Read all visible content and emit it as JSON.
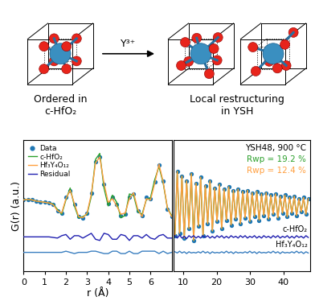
{
  "diagram": {
    "left_label": "Ordered in\nc-HfO₂",
    "arrow_label": "Y³⁺",
    "right_label": "Local restructuring\nin YSH"
  },
  "chart_data": [
    {
      "type": "line",
      "x_label": "r (Å)",
      "y_label": "G(r) (a.u.)",
      "xlim": [
        0,
        7
      ],
      "xticks": [
        0,
        1,
        2,
        3,
        4,
        5,
        6
      ],
      "ylim": [
        0,
        11
      ],
      "tick_labels": "x",
      "legend": "upper left",
      "x": [
        0.0,
        0.2,
        0.4,
        0.6,
        0.8,
        1.0,
        1.2,
        1.4,
        1.6,
        1.8,
        2.0,
        2.2,
        2.4,
        2.6,
        2.8,
        3.0,
        3.2,
        3.4,
        3.6,
        3.8,
        4.0,
        4.2,
        4.4,
        4.6,
        4.8,
        5.0,
        5.2,
        5.4,
        5.6,
        5.8,
        6.0,
        6.2,
        6.4,
        6.6,
        6.8,
        7.0
      ],
      "series": [
        {
          "name": "Data",
          "color": "#1f77b4",
          "marker": "circle",
          "line_style": "none",
          "values": [
            6.0,
            6.05,
            6.0,
            5.9,
            5.85,
            5.8,
            5.75,
            5.6,
            5.1,
            4.9,
            6.2,
            6.8,
            5.6,
            4.6,
            4.5,
            4.9,
            6.6,
            9.2,
            9.6,
            7.3,
            5.7,
            6.2,
            5.6,
            4.7,
            4.8,
            6.2,
            6.5,
            5.1,
            4.7,
            6.2,
            6.1,
            7.5,
            8.9,
            7.6,
            5.2,
            4.6
          ]
        },
        {
          "name": "c-HfO₂",
          "color": "#2ca02c",
          "marker": "none",
          "line_style": "solid",
          "values": [
            6.0,
            6.05,
            6.0,
            5.9,
            5.85,
            5.8,
            5.75,
            5.65,
            5.2,
            4.8,
            6.0,
            7.0,
            5.5,
            4.5,
            4.6,
            4.8,
            6.3,
            9.4,
            9.9,
            7.0,
            5.5,
            6.4,
            5.8,
            4.5,
            4.7,
            6.5,
            6.4,
            5.0,
            4.8,
            6.0,
            6.2,
            7.7,
            8.8,
            7.4,
            5.3,
            4.7
          ]
        },
        {
          "name": "Hf₃Y₄O₁₂",
          "color": "#ff9f3f",
          "marker": "none",
          "line_style": "solid",
          "values": [
            6.0,
            6.05,
            6.0,
            5.9,
            5.85,
            5.8,
            5.75,
            5.6,
            5.1,
            4.9,
            6.1,
            6.8,
            5.7,
            4.6,
            4.5,
            4.9,
            6.5,
            9.1,
            9.6,
            7.4,
            5.8,
            6.1,
            5.5,
            4.8,
            4.9,
            6.1,
            6.6,
            5.2,
            4.6,
            6.1,
            6.0,
            7.4,
            9.0,
            7.5,
            5.3,
            4.6
          ]
        },
        {
          "name": "Residual",
          "color": "#2020b0",
          "marker": "none",
          "line_style": "solid",
          "values": [
            2.9,
            2.9,
            2.9,
            2.9,
            2.9,
            2.9,
            2.9,
            2.85,
            2.8,
            3.0,
            3.1,
            2.7,
            3.0,
            3.0,
            2.8,
            3.0,
            3.2,
            2.7,
            2.6,
            3.2,
            3.1,
            2.7,
            2.7,
            3.1,
            3.0,
            2.6,
            3.0,
            3.0,
            2.8,
            3.1,
            2.8,
            2.7,
            3.0,
            3.1,
            2.8,
            2.8
          ]
        },
        {
          "color": "#3a7fc0",
          "marker": "none",
          "line_style": "solid",
          "values": [
            1.6,
            1.6,
            1.6,
            1.6,
            1.6,
            1.6,
            1.6,
            1.6,
            1.6,
            1.6,
            1.7,
            1.6,
            1.5,
            1.6,
            1.6,
            1.6,
            1.7,
            1.7,
            1.6,
            1.5,
            1.5,
            1.7,
            1.7,
            1.5,
            1.5,
            1.7,
            1.5,
            1.5,
            1.7,
            1.7,
            1.7,
            1.7,
            1.5,
            1.7,
            1.5,
            1.6
          ]
        }
      ]
    },
    {
      "type": "line",
      "xlim": [
        7,
        48
      ],
      "xticks": [
        10,
        20,
        30,
        40
      ],
      "ylim": [
        0,
        11
      ],
      "tick_labels": "x",
      "annotations": [
        {
          "text": "YSH48, 900 °C",
          "color": "#000000"
        },
        {
          "text": "Rwp = 19.2 %",
          "color": "#2ca02c"
        },
        {
          "text": "Rwp = 12.4 %",
          "color": "#ff9f3f"
        }
      ],
      "x": [
        7.5,
        8.2,
        8.9,
        9.6,
        10.3,
        11.0,
        11.7,
        12.4,
        13.1,
        13.8,
        14.5,
        15.2,
        15.9,
        16.6,
        17.3,
        18.0,
        18.7,
        19.4,
        20.1,
        20.8,
        21.5,
        22.2,
        22.9,
        23.6,
        24.3,
        25.0,
        25.7,
        26.4,
        27.1,
        27.8,
        28.5,
        29.2,
        29.9,
        30.6,
        31.3,
        32.0,
        32.7,
        33.4,
        34.1,
        34.8,
        35.5,
        36.2,
        36.9,
        37.6,
        38.3,
        39.0,
        39.7,
        40.4,
        41.1,
        41.8,
        42.5,
        43.2,
        43.9,
        44.6,
        45.3,
        46.0,
        46.7,
        47.4
      ],
      "series": [
        {
          "color": "#1f77b4",
          "marker": "circle",
          "line_style": "none",
          "values": [
            3.0,
            8.4,
            3.2,
            8.0,
            2.8,
            7.6,
            3.6,
            8.2,
            2.6,
            7.4,
            3.8,
            7.9,
            3.0,
            7.2,
            4.0,
            7.6,
            3.4,
            7.0,
            4.2,
            7.3,
            3.6,
            6.9,
            4.3,
            7.1,
            3.9,
            6.8,
            4.4,
            6.9,
            4.0,
            6.7,
            4.5,
            6.8,
            4.2,
            6.6,
            4.6,
            6.7,
            4.3,
            6.5,
            4.7,
            6.6,
            4.4,
            6.4,
            4.8,
            6.5,
            4.5,
            6.3,
            4.9,
            6.4,
            4.6,
            6.2,
            4.9,
            6.3,
            4.7,
            6.1,
            5.0,
            6.2,
            4.8,
            6.1
          ]
        },
        {
          "color": "#2ca02c",
          "marker": "none",
          "line_style": "solid",
          "values": [
            3.0,
            8.4,
            3.2,
            8.0,
            2.8,
            7.6,
            3.6,
            8.2,
            2.6,
            7.4,
            3.8,
            7.9,
            3.0,
            7.2,
            4.0,
            7.6,
            3.4,
            7.0,
            4.2,
            7.3,
            3.6,
            6.9,
            4.3,
            7.1,
            3.9,
            6.8,
            4.4,
            6.9,
            4.0,
            6.7,
            4.5,
            6.8,
            4.2,
            6.6,
            4.6,
            6.7,
            4.3,
            6.5,
            4.7,
            6.6,
            4.4,
            6.4,
            4.8,
            6.5,
            4.5,
            6.3,
            4.9,
            6.4,
            4.6,
            6.2,
            4.9,
            6.3,
            4.7,
            6.1,
            5.0,
            6.2,
            4.8,
            6.1
          ]
        },
        {
          "color": "#ff9f3f",
          "marker": "none",
          "line_style": "solid",
          "values": [
            3.0,
            8.4,
            3.2,
            8.0,
            2.8,
            7.6,
            3.6,
            8.2,
            2.6,
            7.4,
            3.8,
            7.9,
            3.0,
            7.2,
            4.0,
            7.6,
            3.4,
            7.0,
            4.2,
            7.3,
            3.6,
            6.9,
            4.3,
            7.1,
            3.9,
            6.8,
            4.4,
            6.9,
            4.0,
            6.7,
            4.5,
            6.8,
            4.2,
            6.6,
            4.6,
            6.7,
            4.3,
            6.5,
            4.7,
            6.6,
            4.4,
            6.4,
            4.8,
            6.5,
            4.5,
            6.3,
            4.9,
            6.4,
            4.6,
            6.2,
            4.9,
            6.3,
            4.7,
            6.1,
            5.0,
            6.2,
            4.8,
            6.1
          ]
        },
        {
          "label": "c-HfO₂",
          "color": "#2020b0",
          "marker": "none",
          "line_style": "solid",
          "values": [
            3.0,
            2.8,
            3.05,
            2.8,
            2.95,
            2.75,
            3.0,
            2.85,
            3.0,
            2.8,
            2.95,
            2.8,
            3.0,
            2.85,
            3.0,
            2.8,
            2.95,
            2.8,
            3.0,
            2.85,
            3.0,
            2.8,
            2.95,
            2.8,
            3.0,
            2.85,
            2.95,
            2.8,
            3.0,
            2.85,
            3.0,
            2.8,
            2.95,
            2.85,
            3.0,
            2.8,
            2.95,
            2.8,
            3.0,
            2.85,
            2.95,
            2.8,
            3.0,
            2.85,
            3.0,
            2.8,
            2.95,
            2.85,
            3.0,
            2.8,
            2.95,
            2.8,
            3.0,
            2.85,
            2.95,
            2.8,
            3.0,
            2.85
          ]
        },
        {
          "label": "Hf₃Y₄O₁₂",
          "color": "#3a7fc0",
          "marker": "none",
          "line_style": "solid",
          "values": [
            1.65,
            1.55,
            1.7,
            1.55,
            1.65,
            1.5,
            1.65,
            1.55,
            1.6,
            1.55,
            1.65,
            1.55,
            1.7,
            1.55,
            1.65,
            1.5,
            1.65,
            1.55,
            1.6,
            1.55,
            1.65,
            1.55,
            1.7,
            1.55,
            1.65,
            1.5,
            1.65,
            1.55,
            1.6,
            1.55,
            1.65,
            1.55,
            1.7,
            1.55,
            1.65,
            1.5,
            1.65,
            1.55,
            1.6,
            1.55,
            1.65,
            1.55,
            1.7,
            1.55,
            1.65,
            1.5,
            1.65,
            1.55,
            1.6,
            1.55,
            1.65,
            1.55,
            1.7,
            1.55,
            1.65,
            1.5,
            1.65,
            1.55
          ]
        }
      ]
    }
  ]
}
